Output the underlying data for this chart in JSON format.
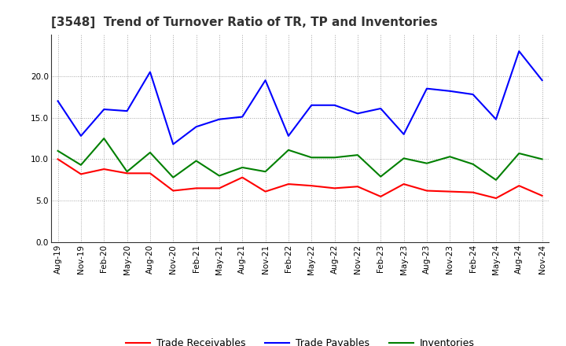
{
  "title": "[3548]  Trend of Turnover Ratio of TR, TP and Inventories",
  "labels": [
    "Aug-19",
    "Nov-19",
    "Feb-20",
    "May-20",
    "Aug-20",
    "Nov-20",
    "Feb-21",
    "May-21",
    "Aug-21",
    "Nov-21",
    "Feb-22",
    "May-22",
    "Aug-22",
    "Nov-22",
    "Feb-23",
    "May-23",
    "Aug-23",
    "Nov-23",
    "Feb-24",
    "May-24",
    "Aug-24",
    "Nov-24"
  ],
  "trade_receivables": [
    10.0,
    8.2,
    8.8,
    8.3,
    8.3,
    6.2,
    6.5,
    6.5,
    7.8,
    6.1,
    7.0,
    6.8,
    6.5,
    6.7,
    5.5,
    7.0,
    6.2,
    6.1,
    6.0,
    5.3,
    6.8,
    5.6
  ],
  "trade_payables": [
    17.0,
    12.8,
    16.0,
    15.8,
    20.5,
    11.8,
    13.9,
    14.8,
    15.1,
    19.5,
    12.8,
    16.5,
    16.5,
    15.5,
    16.1,
    13.0,
    18.5,
    18.2,
    17.8,
    14.8,
    23.0,
    19.5
  ],
  "inventories": [
    11.0,
    9.3,
    12.5,
    8.5,
    10.8,
    7.8,
    9.8,
    8.0,
    9.0,
    8.5,
    11.1,
    10.2,
    10.2,
    10.5,
    7.9,
    10.1,
    9.5,
    10.3,
    9.4,
    7.5,
    10.7,
    10.0
  ],
  "tr_color": "#ff0000",
  "tp_color": "#0000ff",
  "inv_color": "#008000",
  "background_color": "#ffffff",
  "grid_color": "#999999",
  "ylim": [
    0.0,
    25.0
  ],
  "yticks": [
    0.0,
    5.0,
    10.0,
    15.0,
    20.0
  ],
  "legend_labels": [
    "Trade Receivables",
    "Trade Payables",
    "Inventories"
  ],
  "title_fontsize": 11,
  "tick_fontsize": 7.5,
  "legend_fontsize": 9
}
